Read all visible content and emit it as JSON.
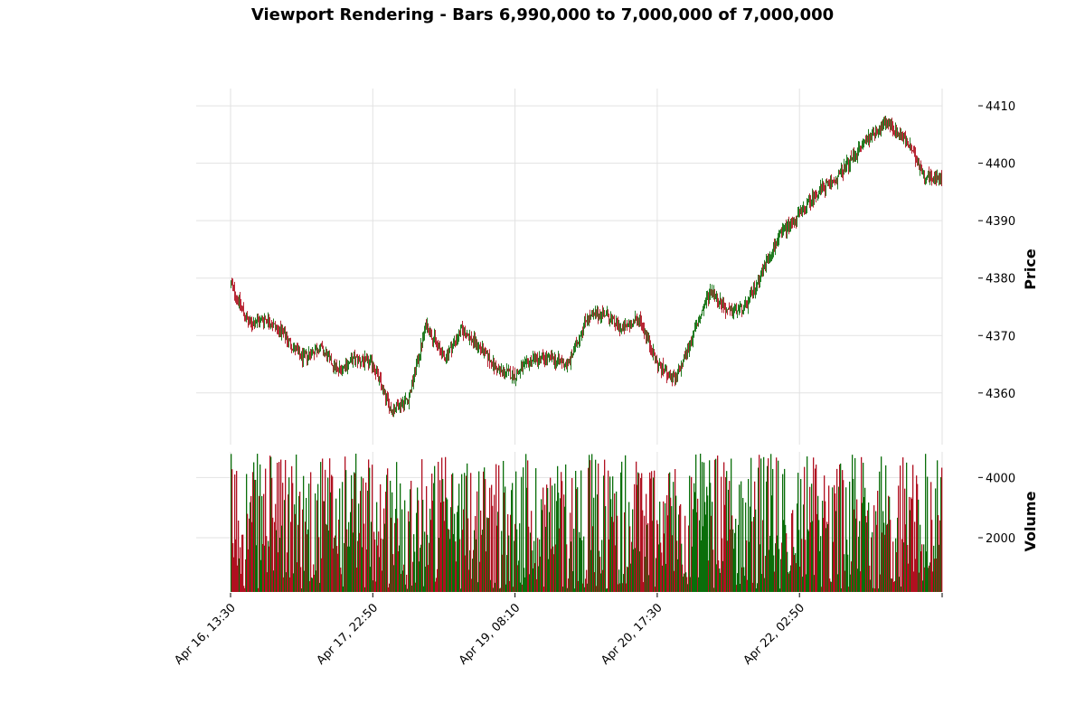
{
  "chart_data": {
    "type": "candlestick",
    "title": "Viewport Rendering - Bars 6,990,000 to 7,000,000 of 7,000,000",
    "x_range": [
      "Apr 16, 13:30",
      "Apr 23, 12:30"
    ],
    "xtick_labels": [
      "Apr 16, 13:30",
      "Apr 17, 22:50",
      "Apr 19, 08:10",
      "Apr 20, 17:30",
      "Apr 22, 02:50"
    ],
    "up_color": "#0a6e0a",
    "down_color": "#b01020",
    "grid": true,
    "price_panel": {
      "ylabel": "Price",
      "ylim": [
        4351,
        4413
      ],
      "yticks": [
        4360,
        4370,
        4380,
        4390,
        4400,
        4410
      ],
      "close_path": {
        "x": [
          "Apr 16, 13:30",
          "Apr 16, 17:40",
          "Apr 16, 21:50",
          "Apr 17, 02:00",
          "Apr 17, 06:10",
          "Apr 17, 10:20",
          "Apr 17, 14:30",
          "Apr 17, 18:40",
          "Apr 17, 22:50",
          "Apr 18, 03:00",
          "Apr 18, 07:10",
          "Apr 18, 11:20",
          "Apr 18, 15:30",
          "Apr 18, 19:40",
          "Apr 18, 23:50",
          "Apr 19, 04:00",
          "Apr 19, 08:10",
          "Apr 19, 12:20",
          "Apr 19, 16:30",
          "Apr 19, 20:40",
          "Apr 20, 00:50",
          "Apr 20, 05:00",
          "Apr 20, 09:10",
          "Apr 20, 13:20",
          "Apr 20, 17:30",
          "Apr 20, 21:40",
          "Apr 21, 01:50",
          "Apr 21, 06:00",
          "Apr 21, 10:10",
          "Apr 21, 14:20",
          "Apr 21, 18:30",
          "Apr 21, 22:40",
          "Apr 22, 02:50",
          "Apr 22, 07:00",
          "Apr 22, 11:10",
          "Apr 22, 15:20",
          "Apr 22, 19:30",
          "Apr 22, 23:40",
          "Apr 23, 03:50",
          "Apr 23, 08:00",
          "Apr 23, 12:30"
        ],
        "close": [
          4379,
          4372,
          4373,
          4370,
          4366,
          4368,
          4364,
          4366,
          4365,
          4357,
          4359,
          4372,
          4366,
          4371,
          4368,
          4364,
          4363,
          4366,
          4366,
          4365,
          4373,
          4374,
          4371,
          4373,
          4365,
          4362,
          4370,
          4378,
          4374,
          4375,
          4382,
          4388,
          4391,
          4395,
          4397,
          4401,
          4405,
          4407,
          4404,
          4398,
          4397
        ]
      }
    },
    "volume_panel": {
      "ylabel": "Volume",
      "ylim": [
        200,
        4850
      ],
      "yticks": [
        2000,
        4000
      ],
      "typical_max": 4800
    }
  }
}
